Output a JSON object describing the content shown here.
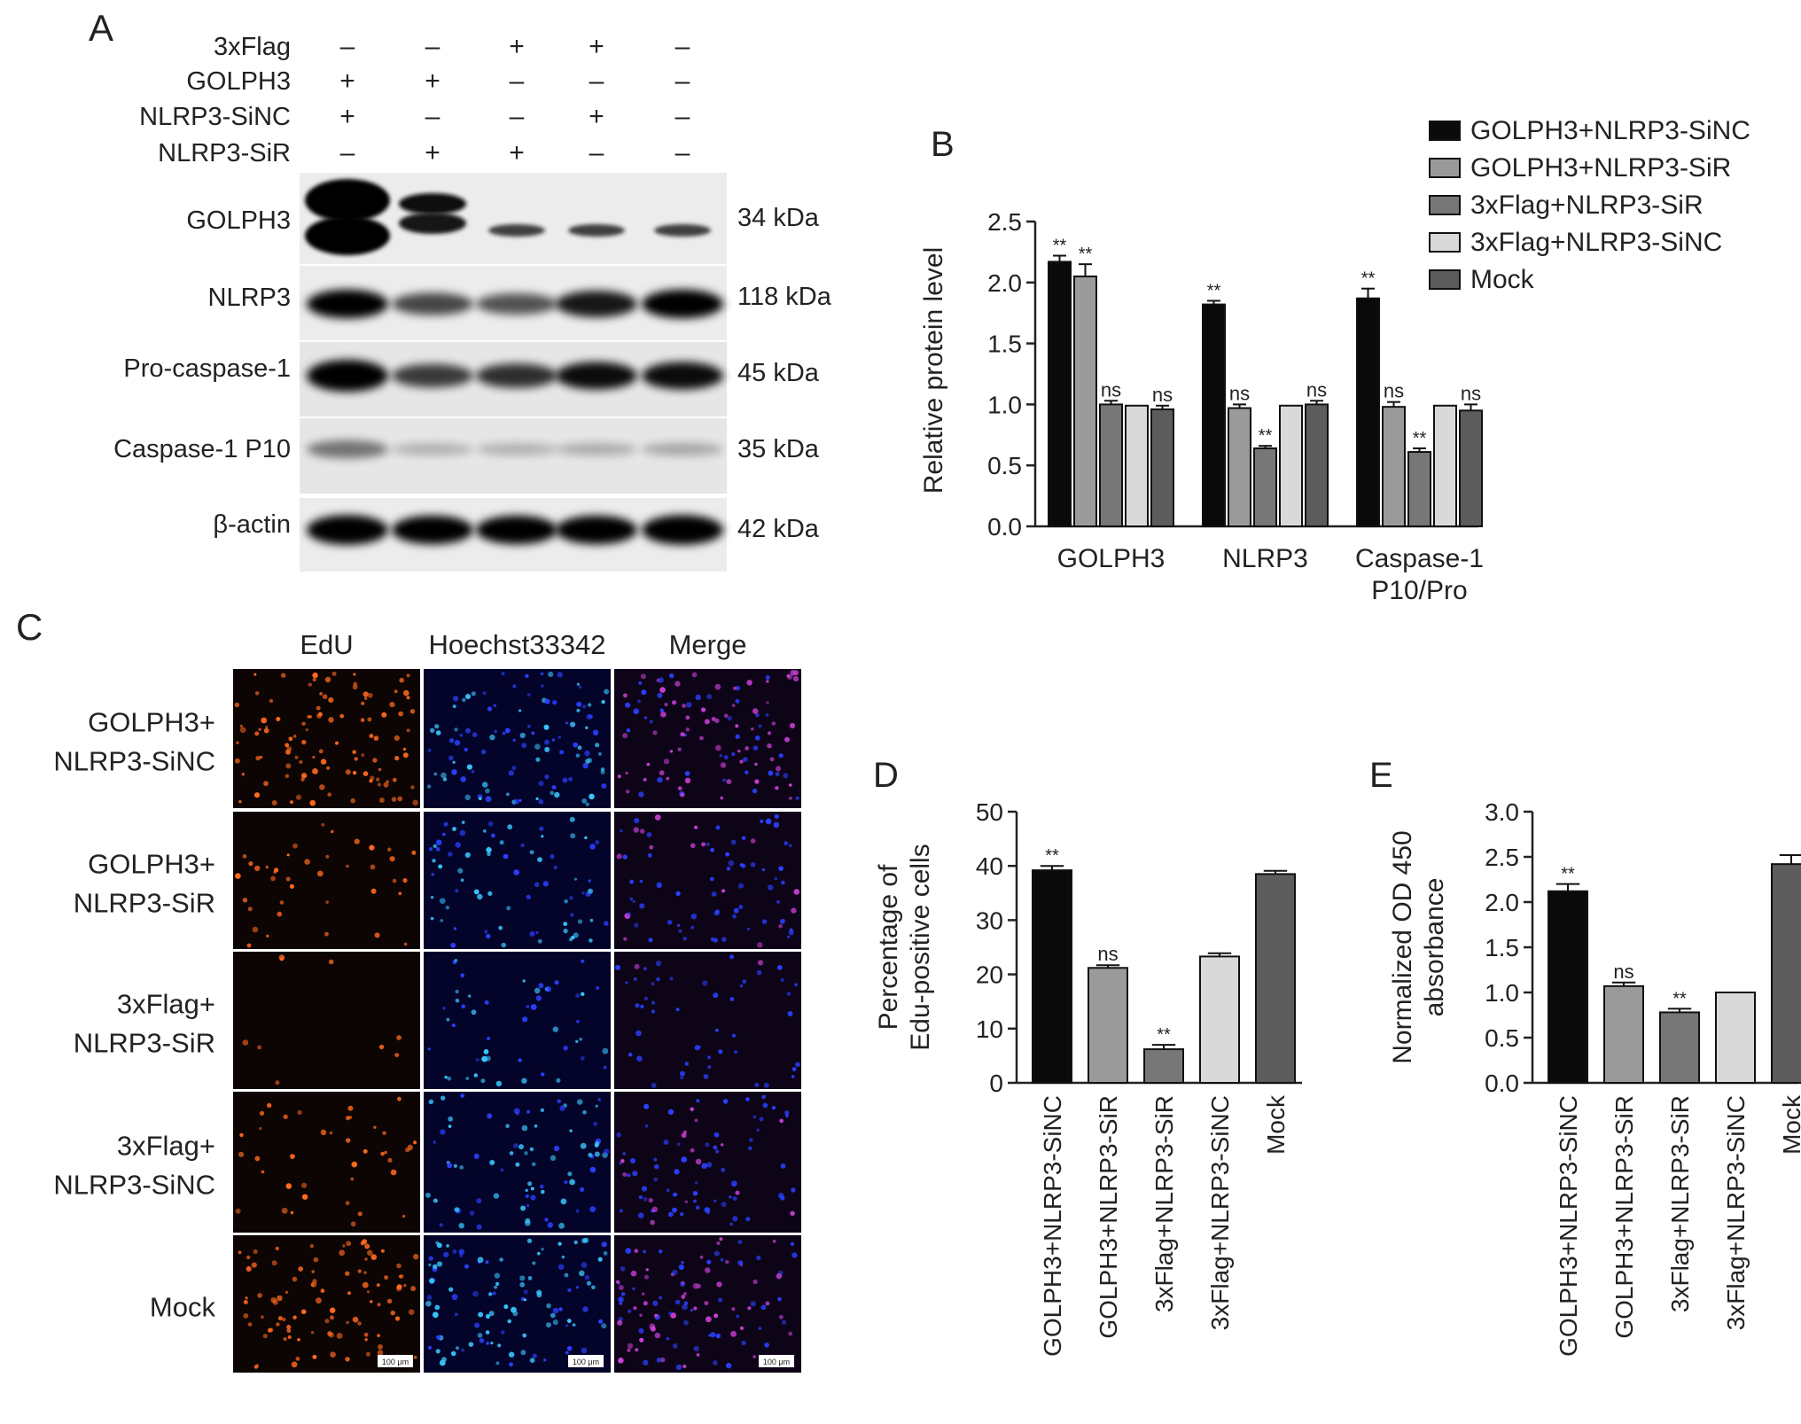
{
  "panel_labels": {
    "a": "A",
    "b": "B",
    "c": "C",
    "d": "D",
    "e": "E"
  },
  "panel_a": {
    "conditions": [
      {
        "label": "3xFlag",
        "marks": [
          "–",
          "–",
          "+",
          "+",
          "–"
        ]
      },
      {
        "label": "GOLPH3",
        "marks": [
          "+",
          "+",
          "–",
          "–",
          "–"
        ]
      },
      {
        "label": "NLRP3-SiNC",
        "marks": [
          "+",
          "–",
          "–",
          "+",
          "–"
        ]
      },
      {
        "label": "NLRP3-SiR",
        "marks": [
          "–",
          "+",
          "+",
          "–",
          "–"
        ]
      }
    ],
    "blots": [
      {
        "name": "GOLPH3",
        "size": "34 kDa",
        "intensity": [
          1.0,
          0.85,
          0.35,
          0.35,
          0.35
        ]
      },
      {
        "name": "NLRP3",
        "size": "118 kDa",
        "intensity": [
          0.85,
          0.55,
          0.5,
          0.75,
          0.85
        ]
      },
      {
        "name": "Pro-caspase-1",
        "size": "45 kDa",
        "intensity": [
          1.0,
          0.6,
          0.65,
          0.8,
          0.8
        ]
      },
      {
        "name": "Caspase-1 P10",
        "size": "35 kDa",
        "intensity": [
          0.35,
          0.08,
          0.08,
          0.1,
          0.12
        ]
      },
      {
        "name": "β-actin",
        "size": "42 kDa",
        "intensity": [
          0.9,
          0.85,
          0.85,
          0.85,
          0.9
        ]
      }
    ]
  },
  "chart_data": [
    {
      "id": "B",
      "type": "bar",
      "ylabel": "Relative protein level",
      "ylim": [
        0,
        2.5
      ],
      "yticks": [
        "0.0",
        "0.5",
        "1.0",
        "1.5",
        "2.0",
        "2.5"
      ],
      "categories": [
        "GOLPH3",
        "NLRP3",
        "Caspase-1\nP10/Pro"
      ],
      "legend_position": "top-right",
      "series": [
        {
          "name": "GOLPH3+NLRP3-SiNC",
          "color": "#0a0a0a",
          "values": [
            2.17,
            1.82,
            1.87
          ],
          "errors": [
            0.05,
            0.03,
            0.08
          ],
          "sig": [
            "**",
            "**",
            "**"
          ]
        },
        {
          "name": "GOLPH3+NLRP3-SiR",
          "color": "#9a9a9a",
          "values": [
            2.05,
            0.97,
            0.98
          ],
          "errors": [
            0.1,
            0.03,
            0.04
          ],
          "sig": [
            "**",
            "ns",
            "ns"
          ]
        },
        {
          "name": "3xFlag+NLRP3-SiR",
          "color": "#777777",
          "values": [
            1.0,
            0.64,
            0.61
          ],
          "errors": [
            0.03,
            0.02,
            0.03
          ],
          "sig": [
            "ns",
            "**",
            "**"
          ]
        },
        {
          "name": "3xFlag+NLRP3-SiNC",
          "color": "#d9d9d9",
          "values": [
            0.99,
            0.99,
            0.99
          ],
          "errors": [
            0,
            0,
            0
          ],
          "sig": [
            "",
            "",
            ""
          ]
        },
        {
          "name": "Mock",
          "color": "#5c5c5c",
          "values": [
            0.96,
            1.0,
            0.95
          ],
          "errors": [
            0.03,
            0.03,
            0.05
          ],
          "sig": [
            "ns",
            "ns",
            "ns"
          ]
        }
      ]
    },
    {
      "id": "D",
      "type": "bar",
      "ylabel_lines": [
        "Percentage of",
        "Edu-positive cells"
      ],
      "ylim": [
        0,
        50
      ],
      "yticks": [
        "0",
        "10",
        "20",
        "30",
        "40",
        "50"
      ],
      "categories": [
        "GOLPH3+NLRP3-SiNC",
        "GOLPH3+NLRP3-SiR",
        "3xFlag+NLRP3-SiR",
        "3xFlag+NLRP3-SiNC",
        "Mock"
      ],
      "colors": [
        "#0a0a0a",
        "#9a9a9a",
        "#777777",
        "#d9d9d9",
        "#5c5c5c"
      ],
      "values": [
        39.2,
        21.2,
        6.2,
        23.3,
        38.5
      ],
      "errors": [
        0.8,
        0.5,
        0.8,
        0.6,
        0.6
      ],
      "sig": [
        "**",
        "ns",
        "**",
        "",
        ""
      ]
    },
    {
      "id": "E",
      "type": "bar",
      "ylabel_lines": [
        "Normalized OD 450",
        "absorbance"
      ],
      "ylim": [
        0,
        3.0
      ],
      "yticks": [
        "0.0",
        "0.5",
        "1.0",
        "1.5",
        "2.0",
        "2.5",
        "3.0"
      ],
      "categories": [
        "GOLPH3+NLRP3-SiNC",
        "GOLPH3+NLRP3-SiR",
        "3xFlag+NLRP3-SiR",
        "3xFlag+NLRP3-SiNC",
        "Mock"
      ],
      "colors": [
        "#0a0a0a",
        "#9a9a9a",
        "#777777",
        "#d9d9d9",
        "#5c5c5c"
      ],
      "values": [
        2.12,
        1.07,
        0.78,
        1.0,
        2.42
      ],
      "errors": [
        0.08,
        0.04,
        0.04,
        0,
        0.1
      ],
      "sig": [
        "**",
        "ns",
        "**",
        "",
        ""
      ]
    }
  ],
  "panel_c": {
    "columns": [
      "EdU",
      "Hoechst33342",
      "Merge"
    ],
    "rows": [
      {
        "lines": [
          "GOLPH3+",
          "NLRP3-SiNC"
        ],
        "edu_density": 1.0,
        "hoechst_density": 1.0
      },
      {
        "lines": [
          "GOLPH3+",
          "NLRP3-SiR"
        ],
        "edu_density": 0.35,
        "hoechst_density": 0.7
      },
      {
        "lines": [
          "3xFlag+",
          "NLRP3-SiR"
        ],
        "edu_density": 0.08,
        "hoechst_density": 0.45
      },
      {
        "lines": [
          "3xFlag+",
          "NLRP3-SiNC"
        ],
        "edu_density": 0.35,
        "hoechst_density": 0.75
      },
      {
        "lines": [
          "Mock"
        ],
        "edu_density": 0.9,
        "hoechst_density": 1.0
      }
    ],
    "scale_bar": "100 μm",
    "colors": {
      "edu": "#ff6a1f",
      "hoechst": "#38c8ff",
      "hoechst_dim": "#2a40ff",
      "merge": "#d040d8"
    }
  }
}
